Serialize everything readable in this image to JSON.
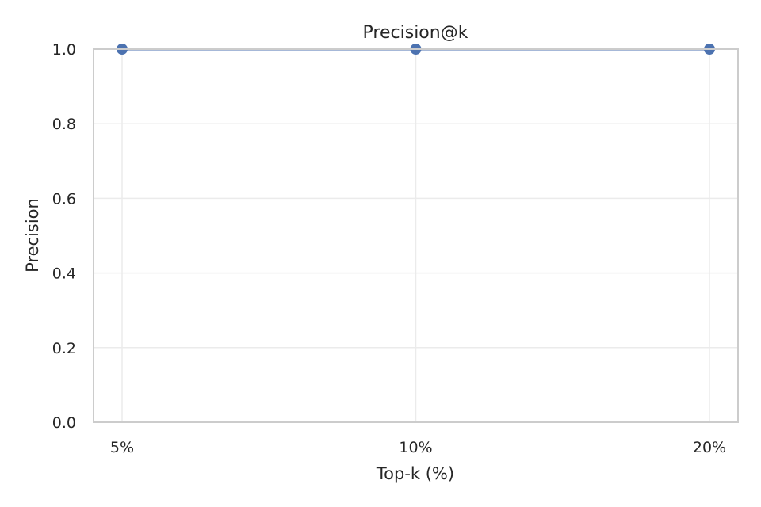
{
  "chart_data": {
    "type": "line",
    "title": "Precision@k",
    "xlabel": "Top-k (%)",
    "ylabel": "Precision",
    "categories": [
      "5%",
      "10%",
      "20%"
    ],
    "series": [
      {
        "values": [
          1.0,
          1.0,
          1.0
        ]
      }
    ],
    "ylim": [
      0,
      1.0
    ],
    "yticks": [
      "0.0",
      "0.2",
      "0.4",
      "0.6",
      "0.8",
      "1.0"
    ],
    "grid": true,
    "legend": "none",
    "colors": {
      "series": "#4c72b0",
      "grid": "#ebebeb",
      "spine": "#cccccc",
      "text": "#262626"
    }
  }
}
